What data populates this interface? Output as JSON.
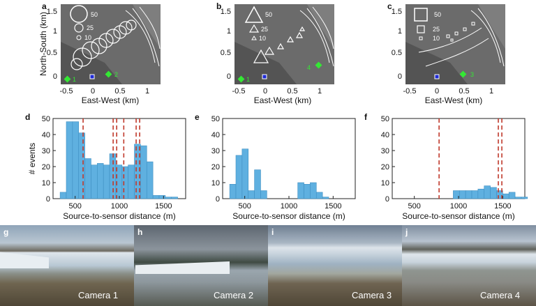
{
  "maps": [
    {
      "letter": "a",
      "ylabel": "North-South (km)",
      "xlabel": "East-West (km)",
      "xticks": [
        "-0.5",
        "0",
        "0.5",
        "1"
      ],
      "yticks": [
        "0",
        "0.5",
        "1",
        "1.5"
      ],
      "marker": "circle",
      "scale_labels": [
        "50",
        "25",
        "10"
      ],
      "camera_label": "1",
      "camera2_label": "2",
      "camera_color": "#34e834",
      "sensor_color": "#1f2bd6"
    },
    {
      "letter": "b",
      "ylabel": "",
      "xlabel": "East-West (km)",
      "xticks": [
        "-0.5",
        "0",
        "0.5",
        "1"
      ],
      "yticks": [
        "0",
        "0.5",
        "1",
        "1.5"
      ],
      "marker": "triangle",
      "scale_labels": [
        "50",
        "25",
        "10"
      ],
      "camera_label": "1",
      "camera2_label": "4",
      "camera_color": "#34e834",
      "sensor_color": "#1f2bd6"
    },
    {
      "letter": "c",
      "ylabel": "",
      "xlabel": "East-West (km)",
      "xticks": [
        "-0.5",
        "0",
        "0.5",
        "1"
      ],
      "yticks": [
        "0",
        "0.5",
        "1",
        "1.5"
      ],
      "marker": "square",
      "scale_labels": [
        "50",
        "25",
        "10"
      ],
      "camera_label": "",
      "camera2_label": "3",
      "camera_color": "#34e834",
      "sensor_color": "#1f2bd6"
    }
  ],
  "chart_data": [
    {
      "type": "bar",
      "letter": "d",
      "xlabel": "Source-to-sensor distance (m)",
      "ylabel": "# events",
      "xlim": [
        250,
        1750
      ],
      "ylim": [
        0,
        50
      ],
      "xticks": [
        "500",
        "1000",
        "1500"
      ],
      "yticks": [
        "0",
        "10",
        "20",
        "30",
        "40",
        "50"
      ],
      "bin_width": 70,
      "bins_start": [
        330,
        400,
        470,
        540,
        610,
        680,
        750,
        820,
        890,
        960,
        1030,
        1100,
        1170,
        1240,
        1310,
        1380,
        1450,
        1520,
        1590
      ],
      "values": [
        4,
        48,
        48,
        41,
        25,
        21,
        22,
        21,
        28,
        21,
        20,
        21,
        34,
        33,
        23,
        2,
        2,
        1,
        1
      ],
      "dashed_lines": [
        590,
        930,
        970,
        1050,
        1190,
        1230
      ],
      "bar_color": "#5fb0e0",
      "line_color": "#c0392b"
    },
    {
      "type": "bar",
      "letter": "e",
      "xlabel": "Source-to-sensor distance (m)",
      "ylabel": "",
      "xlim": [
        250,
        1750
      ],
      "ylim": [
        0,
        50
      ],
      "xticks": [
        "500",
        "1000",
        "1500"
      ],
      "yticks": [
        "0",
        "10",
        "20",
        "30",
        "40",
        "50"
      ],
      "bin_width": 70,
      "bins_start": [
        330,
        400,
        470,
        540,
        610,
        680,
        750,
        820,
        890,
        960,
        1030,
        1100,
        1170,
        1240,
        1310,
        1380
      ],
      "values": [
        9,
        27,
        31,
        5,
        18,
        5,
        0,
        0,
        0,
        0,
        0,
        10,
        9,
        10,
        4,
        1
      ],
      "dashed_lines": [],
      "bar_color": "#5fb0e0",
      "line_color": "#c0392b"
    },
    {
      "type": "bar",
      "letter": "f",
      "xlabel": "Source-to-sensor distance (m)",
      "ylabel": "",
      "xlim": [
        250,
        1750
      ],
      "ylim": [
        0,
        50
      ],
      "xticks": [
        "500",
        "1000",
        "1500"
      ],
      "yticks": [
        "0",
        "10",
        "20",
        "30",
        "40",
        "50"
      ],
      "bin_width": 70,
      "bins_start": [
        940,
        1010,
        1080,
        1150,
        1220,
        1290,
        1360,
        1430,
        1500,
        1570,
        1640,
        1710
      ],
      "values": [
        5,
        5,
        5,
        5,
        6,
        8,
        7,
        5,
        3,
        4,
        1,
        1
      ],
      "dashed_lines": [
        780,
        1450,
        1490
      ],
      "bar_color": "#5fb0e0",
      "line_color": "#c0392b"
    }
  ],
  "photos": [
    {
      "letter": "g",
      "caption": "Camera 1"
    },
    {
      "letter": "h",
      "caption": "Camera 2"
    },
    {
      "letter": "i",
      "caption": "Camera 3"
    },
    {
      "letter": "j",
      "caption": "Camera 4"
    }
  ]
}
